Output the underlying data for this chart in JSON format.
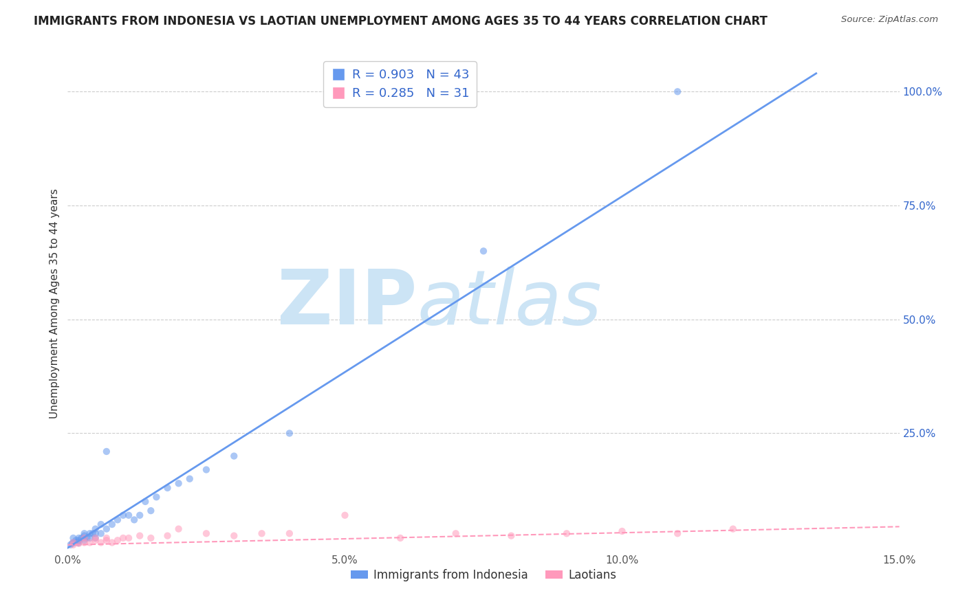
{
  "title": "IMMIGRANTS FROM INDONESIA VS LAOTIAN UNEMPLOYMENT AMONG AGES 35 TO 44 YEARS CORRELATION CHART",
  "source": "Source: ZipAtlas.com",
  "ylabel": "Unemployment Among Ages 35 to 44 years",
  "xlim": [
    0.0,
    0.15
  ],
  "ylim": [
    -0.01,
    1.08
  ],
  "xticks": [
    0.0,
    0.05,
    0.1,
    0.15
  ],
  "xticklabels": [
    "0.0%",
    "5.0%",
    "10.0%",
    "15.0%"
  ],
  "yticks_right": [
    0.25,
    0.5,
    0.75,
    1.0
  ],
  "yticklabels_right": [
    "25.0%",
    "50.0%",
    "75.0%",
    "100.0%"
  ],
  "blue_R": 0.903,
  "blue_N": 43,
  "pink_R": 0.285,
  "pink_N": 31,
  "blue_color": "#6699ee",
  "pink_color": "#ff99bb",
  "legend_text_color": "#3366cc",
  "title_color": "#222222",
  "watermark_zip": "ZIP",
  "watermark_atlas": "atlas",
  "watermark_color": "#cce4f5",
  "grid_color": "#cccccc",
  "blue_scatter_x": [
    0.0005,
    0.0008,
    0.001,
    0.001,
    0.0012,
    0.0015,
    0.0018,
    0.002,
    0.002,
    0.002,
    0.0025,
    0.003,
    0.003,
    0.003,
    0.003,
    0.0035,
    0.004,
    0.004,
    0.0045,
    0.005,
    0.005,
    0.005,
    0.006,
    0.006,
    0.007,
    0.007,
    0.008,
    0.009,
    0.01,
    0.011,
    0.012,
    0.013,
    0.014,
    0.015,
    0.016,
    0.018,
    0.02,
    0.022,
    0.025,
    0.03,
    0.04,
    0.075,
    0.11
  ],
  "blue_scatter_y": [
    0.005,
    0.008,
    0.01,
    0.02,
    0.01,
    0.015,
    0.01,
    0.02,
    0.015,
    0.01,
    0.02,
    0.03,
    0.02,
    0.015,
    0.025,
    0.02,
    0.03,
    0.02,
    0.03,
    0.03,
    0.02,
    0.04,
    0.05,
    0.03,
    0.04,
    0.21,
    0.05,
    0.06,
    0.07,
    0.07,
    0.06,
    0.07,
    0.1,
    0.08,
    0.11,
    0.13,
    0.14,
    0.15,
    0.17,
    0.2,
    0.25,
    0.65,
    1.0
  ],
  "pink_scatter_x": [
    0.001,
    0.001,
    0.002,
    0.003,
    0.003,
    0.004,
    0.005,
    0.005,
    0.006,
    0.007,
    0.007,
    0.008,
    0.009,
    0.01,
    0.011,
    0.013,
    0.015,
    0.018,
    0.02,
    0.025,
    0.03,
    0.035,
    0.04,
    0.05,
    0.06,
    0.07,
    0.08,
    0.09,
    0.1,
    0.11,
    0.12
  ],
  "pink_scatter_y": [
    0.005,
    0.01,
    0.008,
    0.01,
    0.02,
    0.01,
    0.015,
    0.02,
    0.01,
    0.015,
    0.02,
    0.01,
    0.015,
    0.02,
    0.02,
    0.025,
    0.02,
    0.025,
    0.04,
    0.03,
    0.025,
    0.03,
    0.03,
    0.07,
    0.02,
    0.03,
    0.025,
    0.03,
    0.035,
    0.03,
    0.04
  ],
  "blue_line_x": [
    -0.005,
    0.135
  ],
  "blue_line_y": [
    -0.04,
    1.04
  ],
  "pink_line_x": [
    0.0,
    0.15
  ],
  "pink_line_y": [
    0.005,
    0.045
  ],
  "legend_label_blue": "Immigrants from Indonesia",
  "legend_label_pink": "Laotians"
}
